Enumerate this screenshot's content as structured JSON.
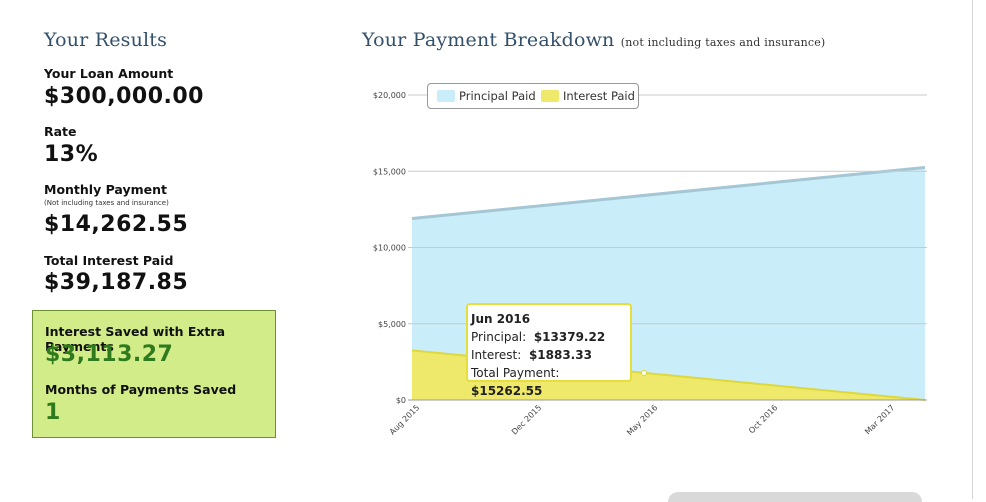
{
  "results": {
    "heading": "Your Results",
    "loan_amount_label": "Your Loan Amount",
    "loan_amount": "$300,000.00",
    "rate_label": "Rate",
    "rate": "13%",
    "monthly_payment_label": "Monthly Payment",
    "monthly_payment_note": "(Not including taxes and insurance)",
    "monthly_payment": "$14,262.55",
    "total_interest_label": "Total Interest Paid",
    "total_interest": "$39,187.85",
    "interest_saved_label": "Interest Saved with Extra Payments",
    "interest_saved": "$3,113.27",
    "months_saved_label": "Months of Payments Saved",
    "months_saved": "1"
  },
  "breakdown": {
    "heading": "Your Payment Breakdown",
    "subtitle": "(not including taxes and insurance)"
  },
  "tooltip": {
    "date": "Jun 2016",
    "principal_label": "Principal:",
    "principal": "$13379.22",
    "interest_label": "Interest:",
    "interest": "$1883.33",
    "total_label": "Total Payment:",
    "total": "$15262.55"
  },
  "chart_data": {
    "type": "area",
    "title": "",
    "xlabel": "",
    "ylabel": "",
    "stacked": true,
    "x_ticks": [
      "Aug 2015",
      "Dec 2015",
      "May 2016",
      "Oct 2016",
      "Mar 2017"
    ],
    "y_ticks": [
      "$0",
      "$5,000",
      "$10,000",
      "$15,000",
      "$20,000"
    ],
    "ylim": [
      0,
      20000
    ],
    "legend_position": "top-left",
    "grid": true,
    "series": [
      {
        "name": "Principal Paid",
        "color": "#c9edf9",
        "values_start_end": [
          11900,
          15250
        ]
      },
      {
        "name": "Interest Paid",
        "color": "#eee96a",
        "values_start_end": [
          3250,
          0
        ]
      }
    ],
    "colors": {
      "principal": "#c9edf9",
      "principal_line": "#a5c6d4",
      "interest": "#eee96a",
      "interest_line": "#ded83a"
    }
  }
}
